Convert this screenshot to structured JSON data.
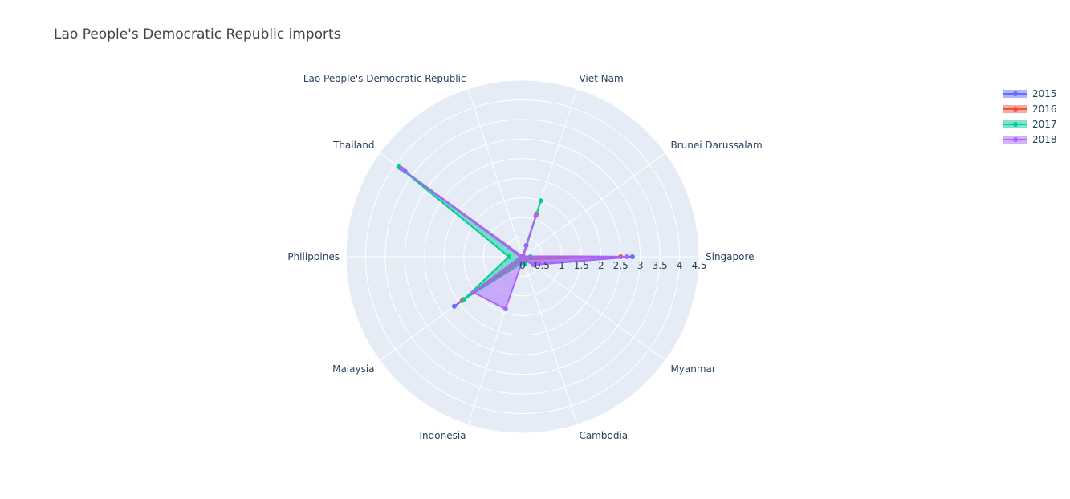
{
  "chart_data": {
    "type": "radar",
    "title": "Lao People's Democratic Republic imports",
    "categories": [
      "Singapore",
      "Brunei Darussalam",
      "Viet Nam",
      "Lao People's Democratic Republic",
      "Thailand",
      "Philippines",
      "Malaysia",
      "Indonesia",
      "Cambodia",
      "Myanmar"
    ],
    "radial_ticks": [
      "0",
      "0.5",
      "1",
      "1.5",
      "2",
      "2.5",
      "3",
      "3.5",
      "4",
      "4.5"
    ],
    "rlim": [
      0,
      4.5
    ],
    "series": [
      {
        "name": "2015",
        "color": "#636efa",
        "values": [
          2.8,
          0.02,
          0.3,
          0,
          3.7,
          0.05,
          2.15,
          0.1,
          0.08,
          0.35
        ]
      },
      {
        "name": "2016",
        "color": "#ef553b",
        "values": [
          2.5,
          0.02,
          1.15,
          0,
          3.85,
          0.05,
          1.9,
          0.1,
          0.08,
          0.1
        ]
      },
      {
        "name": "2017",
        "color": "#00cc96",
        "values": [
          0.2,
          0.02,
          1.5,
          0,
          3.9,
          0.35,
          1.85,
          0.2,
          0.2,
          0.05
        ]
      },
      {
        "name": "2018",
        "color": "#ab63fa",
        "values": [
          2.65,
          0.02,
          1.1,
          0,
          3.8,
          0.05,
          1.55,
          1.4,
          0.05,
          0.35
        ]
      }
    ],
    "legend_position": "top-right",
    "grid": true
  }
}
